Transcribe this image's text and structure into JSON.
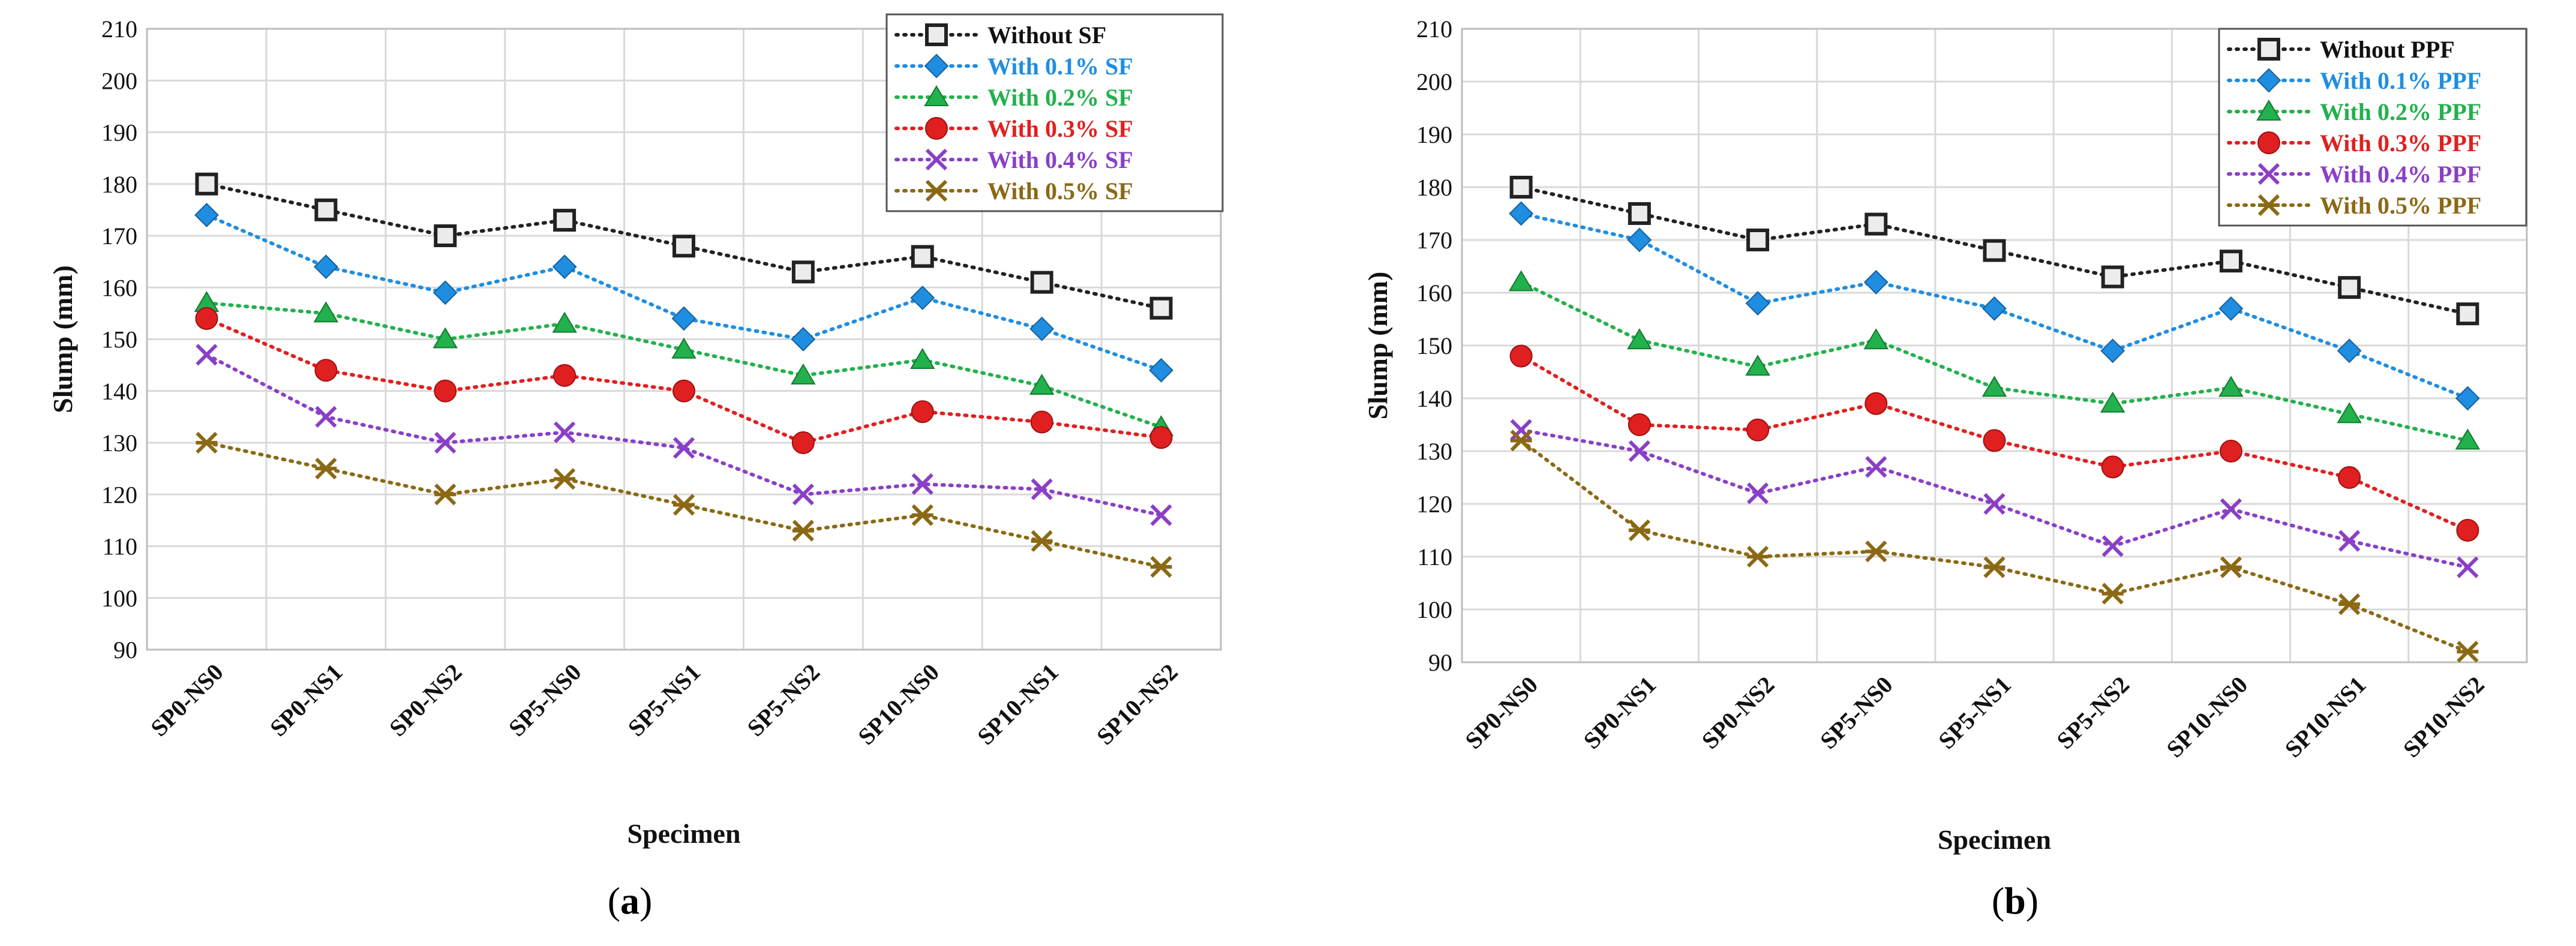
{
  "colors": {
    "without": "#222222",
    "p01": "#1f8ee0",
    "p02": "#22b14c",
    "p03": "#e02020",
    "p04": "#8a3fc6",
    "p05": "#8b6914",
    "grid": "#d9d9d9"
  },
  "panels": [
    {
      "caption_left": "(",
      "caption_letter": "a",
      "caption_right": ")",
      "chart_data": {
        "type": "line",
        "xlabel": "Specimen",
        "ylabel": "Slump (mm)",
        "ylim": [
          90,
          210
        ],
        "yticks": [
          90,
          100,
          110,
          120,
          130,
          140,
          150,
          160,
          170,
          180,
          190,
          200,
          210
        ],
        "grid": true,
        "legend_position": "top-right",
        "categories": [
          "SP0-NS0",
          "SP0-NS1",
          "SP0-NS2",
          "SP5-NS0",
          "SP5-NS1",
          "SP5-NS2",
          "SP10-NS0",
          "SP10-NS1",
          "SP10-NS2"
        ],
        "series": [
          {
            "name": "Without SF",
            "marker": "square",
            "color": "#222222",
            "values": [
              180,
              175,
              170,
              173,
              168,
              163,
              166,
              161,
              156
            ]
          },
          {
            "name": "With 0.1% SF",
            "marker": "diamond",
            "color": "#1f8ee0",
            "values": [
              174,
              164,
              159,
              164,
              154,
              150,
              158,
              152,
              144
            ]
          },
          {
            "name": "With 0.2% SF",
            "marker": "triangle",
            "color": "#22b14c",
            "values": [
              157,
              155,
              150,
              153,
              148,
              143,
              146,
              141,
              133
            ]
          },
          {
            "name": "With 0.3% SF",
            "marker": "circle",
            "color": "#e02020",
            "values": [
              154,
              144,
              140,
              143,
              140,
              130,
              136,
              134,
              131
            ]
          },
          {
            "name": "With 0.4% SF",
            "marker": "x",
            "color": "#8a3fc6",
            "values": [
              147,
              135,
              130,
              132,
              129,
              120,
              122,
              121,
              116
            ]
          },
          {
            "name": "With 0.5% SF",
            "marker": "star",
            "color": "#8b6914",
            "values": [
              130,
              125,
              120,
              123,
              118,
              113,
              116,
              111,
              106
            ]
          }
        ]
      }
    },
    {
      "caption_left": "(",
      "caption_letter": "b",
      "caption_right": ")",
      "chart_data": {
        "type": "line",
        "xlabel": "Specimen",
        "ylabel": "Slump (mm)",
        "ylim": [
          90,
          210
        ],
        "yticks": [
          90,
          100,
          110,
          120,
          130,
          140,
          150,
          160,
          170,
          180,
          190,
          200,
          210
        ],
        "grid": true,
        "legend_position": "top-right",
        "categories": [
          "SP0-NS0",
          "SP0-NS1",
          "SP0-NS2",
          "SP5-NS0",
          "SP5-NS1",
          "SP5-NS2",
          "SP10-NS0",
          "SP10-NS1",
          "SP10-NS2"
        ],
        "series": [
          {
            "name": "Without PPF",
            "marker": "square",
            "color": "#222222",
            "values": [
              180,
              175,
              170,
              173,
              168,
              163,
              166,
              161,
              156
            ]
          },
          {
            "name": "With 0.1% PPF",
            "marker": "diamond",
            "color": "#1f8ee0",
            "values": [
              175,
              170,
              158,
              162,
              157,
              149,
              157,
              149,
              140
            ]
          },
          {
            "name": "With 0.2% PPF",
            "marker": "triangle",
            "color": "#22b14c",
            "values": [
              162,
              151,
              146,
              151,
              142,
              139,
              142,
              137,
              132
            ]
          },
          {
            "name": "With 0.3% PPF",
            "marker": "circle",
            "color": "#e02020",
            "values": [
              148,
              135,
              134,
              139,
              132,
              127,
              130,
              125,
              115
            ]
          },
          {
            "name": "With 0.4% PPF",
            "marker": "x",
            "color": "#8a3fc6",
            "values": [
              134,
              130,
              122,
              127,
              120,
              112,
              119,
              113,
              108
            ]
          },
          {
            "name": "With 0.5% PPF",
            "marker": "star",
            "color": "#8b6914",
            "values": [
              132,
              115,
              110,
              111,
              108,
              103,
              108,
              101,
              92
            ]
          }
        ]
      }
    }
  ]
}
